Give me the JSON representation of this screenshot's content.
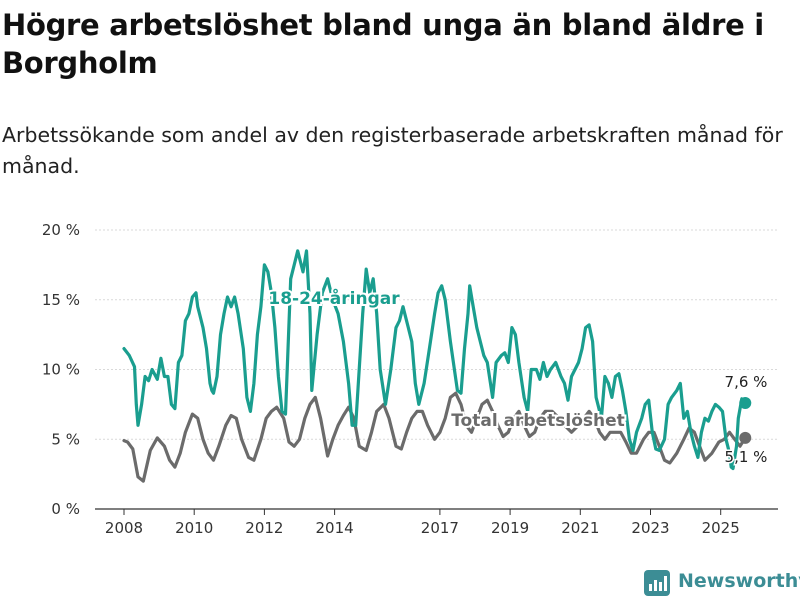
{
  "header": {
    "title": "Högre arbetslöshet bland unga än bland äldre i Borgholm",
    "subtitle": "Arbetssökande som andel av den registerbaserade arbetskraften månad för månad."
  },
  "brand": {
    "name": "Newsworthy"
  },
  "colors": {
    "youth": "#1a9e8f",
    "total": "#6b6b6b",
    "grid": "#d9d9d9",
    "brand": "#3c8d95"
  },
  "chart_data": {
    "type": "line",
    "title": "Högre arbetslöshet bland unga än bland äldre i Borgholm",
    "ylim": [
      0,
      20
    ],
    "xlim": [
      2007.6,
      2026.1
    ],
    "yticks": [
      0,
      5,
      10,
      15,
      20
    ],
    "ytick_labels": [
      "0 %",
      "5 %",
      "10 %",
      "15 %",
      "20 %"
    ],
    "xticks": [
      2008,
      2010,
      2012,
      2014,
      2017,
      2019,
      2021,
      2023,
      2025
    ],
    "xtick_labels": [
      "2008",
      "2010",
      "2012",
      "2014",
      "2017",
      "2019",
      "2021",
      "2023",
      "2025"
    ],
    "series": [
      {
        "name": "18-24-åringar",
        "label": "18-24-åringar",
        "end_label": "7,6 %",
        "x": [
          2008.0,
          2008.15,
          2008.3,
          2008.35,
          2008.4,
          2008.5,
          2008.6,
          2008.7,
          2008.8,
          2008.95,
          2009.05,
          2009.15,
          2009.25,
          2009.35,
          2009.45,
          2009.55,
          2009.65,
          2009.75,
          2009.85,
          2009.95,
          2010.05,
          2010.1,
          2010.15,
          2010.25,
          2010.35,
          2010.45,
          2010.5,
          2010.55,
          2010.65,
          2010.75,
          2010.85,
          2010.95,
          2011.05,
          2011.15,
          2011.25,
          2011.4,
          2011.5,
          2011.6,
          2011.7,
          2011.8,
          2011.9,
          2012.0,
          2012.1,
          2012.2,
          2012.3,
          2012.4,
          2012.5,
          2012.6,
          2012.75,
          2012.85,
          2012.95,
          2013.1,
          2013.2,
          2013.3,
          2013.35,
          2013.5,
          2013.65,
          2013.8,
          2013.95,
          2014.1,
          2014.25,
          2014.4,
          2014.5,
          2014.6,
          2014.7,
          2014.8,
          2014.9,
          2015.0,
          2015.1,
          2015.2,
          2015.3,
          2015.45,
          2015.6,
          2015.75,
          2015.85,
          2015.95,
          2016.1,
          2016.2,
          2016.3,
          2016.4,
          2016.55,
          2016.7,
          2016.85,
          2016.95,
          2017.05,
          2017.15,
          2017.3,
          2017.5,
          2017.6,
          2017.7,
          2017.8,
          2017.85,
          2017.95,
          2018.05,
          2018.15,
          2018.25,
          2018.35,
          2018.5,
          2018.6,
          2018.75,
          2018.85,
          2018.95,
          2019.05,
          2019.15,
          2019.25,
          2019.4,
          2019.5,
          2019.6,
          2019.75,
          2019.85,
          2019.95,
          2020.05,
          2020.15,
          2020.3,
          2020.45,
          2020.55,
          2020.65,
          2020.75,
          2020.85,
          2020.95,
          2021.05,
          2021.15,
          2021.25,
          2021.35,
          2021.45,
          2021.6,
          2021.7,
          2021.8,
          2021.9,
          2022.0,
          2022.1,
          2022.2,
          2022.3,
          2022.4,
          2022.5,
          2022.6,
          2022.75,
          2022.85,
          2022.95,
          2023.05,
          2023.15,
          2023.25,
          2023.4,
          2023.5,
          2023.6,
          2023.75,
          2023.85,
          2023.95,
          2024.05,
          2024.15,
          2024.25,
          2024.35,
          2024.45,
          2024.55,
          2024.65,
          2024.75,
          2024.85,
          2024.95,
          2025.05,
          2025.15,
          2025.25,
          2025.3,
          2025.35,
          2025.45,
          2025.5,
          2025.6,
          2025.7
        ],
        "values": [
          11.5,
          11.0,
          10.2,
          7.5,
          6.0,
          7.5,
          9.5,
          9.2,
          10.0,
          9.3,
          10.8,
          9.5,
          9.5,
          7.5,
          7.2,
          10.5,
          11.0,
          13.5,
          14.0,
          15.2,
          15.5,
          14.5,
          14.0,
          13.0,
          11.5,
          9.0,
          8.5,
          8.3,
          9.5,
          12.5,
          14.0,
          15.2,
          14.5,
          15.2,
          14.0,
          11.5,
          8.0,
          7.0,
          9.0,
          12.5,
          14.5,
          17.5,
          17.0,
          15.5,
          13.0,
          9.5,
          7.0,
          6.8,
          16.5,
          17.5,
          18.5,
          17.0,
          18.5,
          14.0,
          8.5,
          12.5,
          15.5,
          16.5,
          15.0,
          14.0,
          12.0,
          9.0,
          6.0,
          6.0,
          10.0,
          14.0,
          17.2,
          15.5,
          16.5,
          14.0,
          10.0,
          7.5,
          10.0,
          13.0,
          13.5,
          14.5,
          13.0,
          12.0,
          9.0,
          7.5,
          9.0,
          11.5,
          14.0,
          15.5,
          16.0,
          15.0,
          12.0,
          8.5,
          8.3,
          11.5,
          14.0,
          16.0,
          14.5,
          13.0,
          12.0,
          11.0,
          10.5,
          8.0,
          10.5,
          11.0,
          11.2,
          10.5,
          13.0,
          12.5,
          10.5,
          8.0,
          7.0,
          10.0,
          10.0,
          9.3,
          10.5,
          9.5,
          10.0,
          10.5,
          9.5,
          9.0,
          7.8,
          9.5,
          10.0,
          10.5,
          11.5,
          13.0,
          13.2,
          12.0,
          8.0,
          6.5,
          9.5,
          9.0,
          8.0,
          9.5,
          9.7,
          8.5,
          7.0,
          5.0,
          4.2,
          5.5,
          6.5,
          7.5,
          7.8,
          5.5,
          4.3,
          4.2,
          5.0,
          7.5,
          8.0,
          8.5,
          9.0,
          6.5,
          7.0,
          5.5,
          4.5,
          3.7,
          5.5,
          6.5,
          6.3,
          7.0,
          7.5,
          7.3,
          7.0,
          5.0,
          4.0,
          3.0,
          2.9,
          4.5,
          6.5,
          7.9,
          7.6
        ]
      },
      {
        "name": "Total arbetslöshet",
        "label": "Total arbetslöshet",
        "end_label": "5,1 %",
        "x": [
          2008.0,
          2008.1,
          2008.25,
          2008.4,
          2008.55,
          2008.75,
          2008.95,
          2009.15,
          2009.3,
          2009.45,
          2009.6,
          2009.75,
          2009.95,
          2010.1,
          2010.25,
          2010.4,
          2010.55,
          2010.7,
          2010.9,
          2011.05,
          2011.2,
          2011.35,
          2011.55,
          2011.7,
          2011.9,
          2012.05,
          2012.2,
          2012.35,
          2012.55,
          2012.7,
          2012.85,
          2013.0,
          2013.15,
          2013.3,
          2013.45,
          2013.6,
          2013.8,
          2013.95,
          2014.1,
          2014.25,
          2014.4,
          2014.55,
          2014.7,
          2014.9,
          2015.05,
          2015.2,
          2015.4,
          2015.55,
          2015.75,
          2015.9,
          2016.05,
          2016.2,
          2016.35,
          2016.5,
          2016.65,
          2016.85,
          2017.0,
          2017.15,
          2017.3,
          2017.45,
          2017.6,
          2017.75,
          2017.9,
          2018.05,
          2018.2,
          2018.35,
          2018.5,
          2018.65,
          2018.8,
          2018.95,
          2019.1,
          2019.25,
          2019.4,
          2019.55,
          2019.7,
          2019.85,
          2020.0,
          2020.2,
          2020.4,
          2020.55,
          2020.75,
          2020.95,
          2021.1,
          2021.25,
          2021.4,
          2021.55,
          2021.7,
          2021.85,
          2022.0,
          2022.15,
          2022.3,
          2022.45,
          2022.6,
          2022.8,
          2022.95,
          2023.1,
          2023.25,
          2023.4,
          2023.55,
          2023.75,
          2023.95,
          2024.1,
          2024.25,
          2024.4,
          2024.55,
          2024.75,
          2024.95,
          2025.1,
          2025.25,
          2025.4,
          2025.55,
          2025.7
        ],
        "values": [
          4.9,
          4.8,
          4.3,
          2.3,
          2.0,
          4.2,
          5.1,
          4.5,
          3.5,
          3.0,
          4.0,
          5.5,
          6.8,
          6.5,
          5.0,
          4.0,
          3.5,
          4.5,
          6.0,
          6.7,
          6.5,
          5.0,
          3.7,
          3.5,
          5.0,
          6.5,
          7.0,
          7.3,
          6.5,
          4.8,
          4.5,
          5.0,
          6.5,
          7.5,
          8.0,
          6.5,
          3.8,
          5.0,
          6.0,
          6.7,
          7.3,
          6.5,
          4.5,
          4.2,
          5.5,
          7.0,
          7.5,
          6.5,
          4.5,
          4.3,
          5.5,
          6.5,
          7.0,
          7.0,
          6.0,
          5.0,
          5.5,
          6.5,
          8.0,
          8.3,
          7.5,
          6.0,
          5.5,
          6.5,
          7.5,
          7.8,
          7.0,
          6.0,
          5.2,
          5.5,
          6.5,
          7.0,
          6.0,
          5.2,
          5.5,
          6.5,
          7.0,
          7.0,
          6.5,
          6.0,
          5.5,
          6.0,
          6.5,
          7.0,
          6.5,
          5.5,
          5.0,
          5.5,
          5.5,
          5.5,
          4.8,
          4.0,
          4.0,
          5.0,
          5.5,
          5.5,
          4.5,
          3.5,
          3.3,
          4.0,
          5.0,
          5.8,
          5.5,
          4.5,
          3.5,
          4.0,
          4.8,
          5.0,
          5.5,
          5.0,
          4.5,
          5.1
        ]
      }
    ]
  }
}
